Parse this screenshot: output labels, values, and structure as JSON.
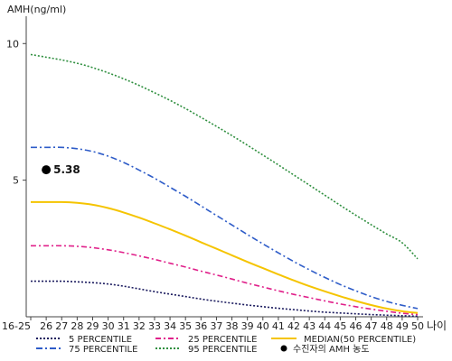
{
  "chart_data": {
    "type": "line",
    "title": "",
    "ylabel": "AMH(ng/ml)",
    "xlabel": "나이",
    "x": [
      "16-25",
      "26",
      "27",
      "28",
      "29",
      "30",
      "31",
      "32",
      "33",
      "34",
      "35",
      "36",
      "37",
      "38",
      "39",
      "40",
      "41",
      "42",
      "43",
      "44",
      "45",
      "46",
      "47",
      "48",
      "49",
      "50"
    ],
    "ylim": [
      0,
      11
    ],
    "yticks": [
      5,
      10
    ],
    "series": [
      {
        "name": "5 PERCENTILE",
        "color": "#1a1a5e",
        "dash": "2,2",
        "values": [
          1.3,
          1.3,
          1.3,
          1.28,
          1.25,
          1.2,
          1.12,
          1.02,
          0.92,
          0.83,
          0.74,
          0.65,
          0.57,
          0.5,
          0.43,
          0.37,
          0.31,
          0.26,
          0.21,
          0.17,
          0.14,
          0.11,
          0.08,
          0.06,
          0.04,
          0.02
        ]
      },
      {
        "name": "25 PERCENTILE",
        "color": "#e0208a",
        "dash": "6,3,2,3",
        "values": [
          2.6,
          2.6,
          2.6,
          2.58,
          2.53,
          2.45,
          2.35,
          2.23,
          2.1,
          1.96,
          1.82,
          1.67,
          1.53,
          1.38,
          1.23,
          1.09,
          0.95,
          0.82,
          0.7,
          0.58,
          0.47,
          0.37,
          0.28,
          0.2,
          0.13,
          0.08
        ]
      },
      {
        "name": "MEDIAN(50 PERCENTILE)",
        "color": "#f5c400",
        "dash": "",
        "values": [
          4.2,
          4.2,
          4.2,
          4.17,
          4.1,
          3.98,
          3.82,
          3.63,
          3.42,
          3.2,
          2.97,
          2.73,
          2.49,
          2.25,
          2.01,
          1.78,
          1.55,
          1.33,
          1.12,
          0.93,
          0.75,
          0.58,
          0.43,
          0.3,
          0.2,
          0.14
        ]
      },
      {
        "name": "75 PERCENTILE",
        "color": "#2e5cc8",
        "dash": "7,3,2,3",
        "values": [
          6.2,
          6.2,
          6.2,
          6.15,
          6.05,
          5.88,
          5.65,
          5.37,
          5.07,
          4.74,
          4.41,
          4.06,
          3.71,
          3.36,
          3.01,
          2.67,
          2.34,
          2.02,
          1.72,
          1.44,
          1.18,
          0.95,
          0.74,
          0.56,
          0.42,
          0.3
        ]
      },
      {
        "name": "95 PERCENTILE",
        "color": "#2f8f3f",
        "dash": "2,2",
        "values": [
          9.6,
          9.5,
          9.4,
          9.28,
          9.12,
          8.93,
          8.71,
          8.47,
          8.2,
          7.92,
          7.62,
          7.3,
          6.97,
          6.63,
          6.28,
          5.92,
          5.56,
          5.19,
          4.82,
          4.45,
          4.08,
          3.72,
          3.37,
          3.03,
          2.71,
          2.12
        ]
      }
    ],
    "marker": {
      "label": "5.38",
      "x": "26",
      "y": 5.38,
      "color": "#000000"
    },
    "legend": {
      "placement": "bottom",
      "entries": [
        {
          "label": "5 PERCENTILE",
          "color": "#1a1a5e",
          "dash": "2,2",
          "kind": "line"
        },
        {
          "label": "25 PERCENTILE",
          "color": "#e0208a",
          "dash": "6,3,2,3",
          "kind": "line"
        },
        {
          "label": "MEDIAN(50 PERCENTILE)",
          "color": "#f5c400",
          "dash": "",
          "kind": "line"
        },
        {
          "label": "75 PERCENTILE",
          "color": "#2e5cc8",
          "dash": "7,3,2,3",
          "kind": "line"
        },
        {
          "label": "95 PERCENTILE",
          "color": "#2f8f3f",
          "dash": "2,2",
          "kind": "line"
        },
        {
          "label": "수진자의 AMH 농도",
          "color": "#000000",
          "dash": "",
          "kind": "dot"
        }
      ]
    },
    "grid": false
  }
}
